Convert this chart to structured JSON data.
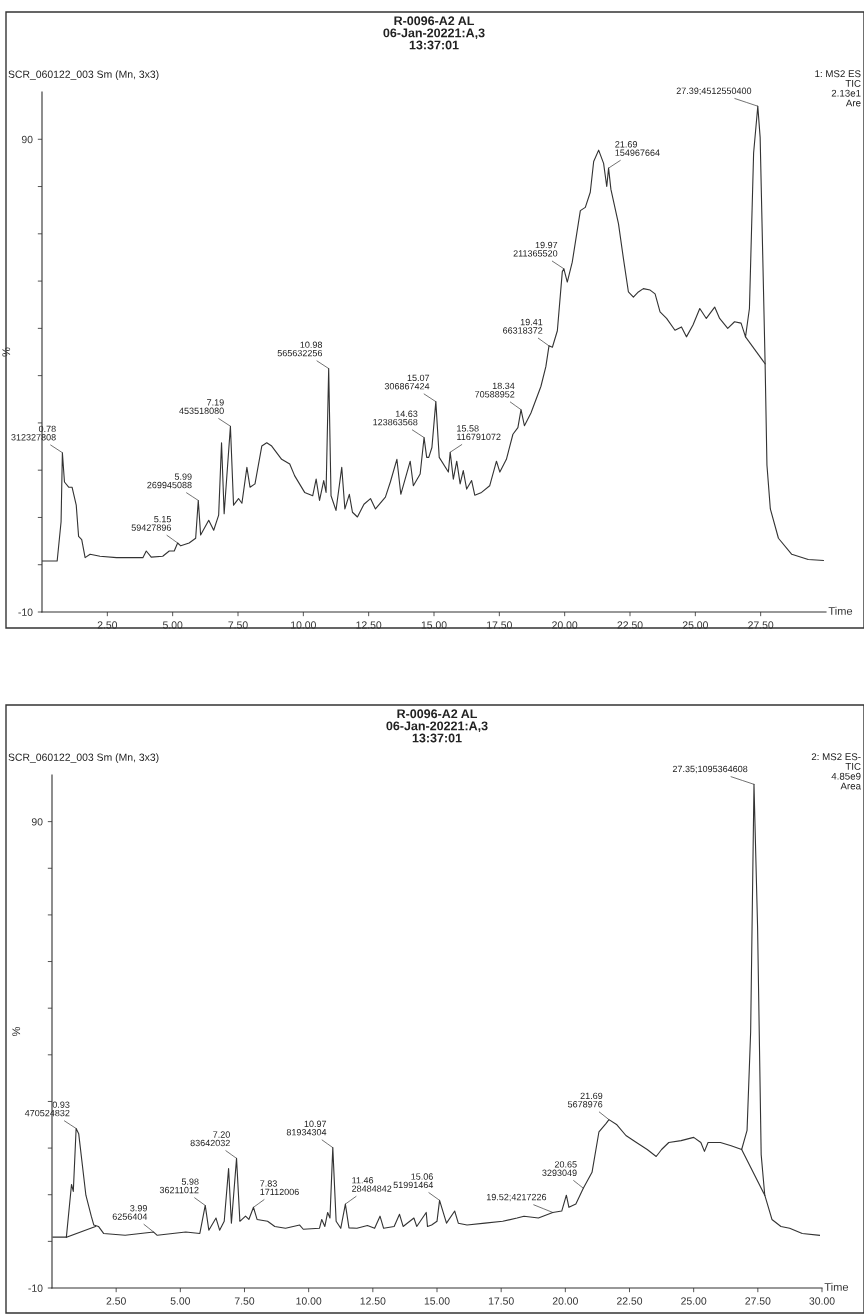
{
  "chart_data": [
    {
      "type": "line",
      "title": "R-0096-A2 AL\n06-Jan-20221:A,3\n13:37:01",
      "subtitle": "SCR_060122_003 Sm (Mn, 3x3)",
      "xlabel": "Time",
      "ylabel": "%",
      "xlim": [
        0,
        30
      ],
      "ylim": [
        -10,
        100
      ],
      "xticks": [
        {
          "value": 2.5,
          "label": "2.50"
        },
        {
          "value": 5,
          "label": "5.00"
        },
        {
          "value": 7.5,
          "label": "7.50"
        },
        {
          "value": 10,
          "label": "10.00"
        },
        {
          "value": 12.5,
          "label": "12.50"
        },
        {
          "value": 15,
          "label": "15.00"
        },
        {
          "value": 17.5,
          "label": "17.50"
        },
        {
          "value": 20,
          "label": "20.00"
        },
        {
          "value": 22.5,
          "label": "22.50"
        },
        {
          "value": 25,
          "label": "25.00"
        },
        {
          "value": 27.5,
          "label": "27.50"
        }
      ],
      "yticks": [
        -10,
        {
          "value": 0,
          "label": null
        },
        {
          "value": 10,
          "label": null
        },
        {
          "value": 20,
          "label": null
        },
        {
          "value": 30,
          "label": null
        },
        {
          "value": 40,
          "label": null
        },
        {
          "value": 50,
          "label": null
        },
        {
          "value": 60,
          "label": null
        },
        {
          "value": 70,
          "label": null
        },
        {
          "value": 80,
          "label": null
        },
        90
      ],
      "series": [
        {
          "color": "#333333",
          "x": [
            0.01,
            0.58,
            0.73,
            0.78,
            0.86,
            1.02,
            1.15,
            1.31,
            1.4,
            1.52,
            1.65,
            1.84,
            2.22,
            2.85,
            3.86,
            3.99,
            4.18,
            4.62,
            4.87,
            5.06,
            5.19,
            5.31,
            5.63,
            5.88,
            5.98,
            6.07,
            6.38,
            6.57,
            6.76,
            6.87,
            6.97,
            7.21,
            7.33,
            7.52,
            7.65,
            7.84,
            7.96,
            8.15,
            8.41,
            8.6,
            8.79,
            9.17,
            9.48,
            9.67,
            10.05,
            10.36,
            10.49,
            10.62,
            10.78,
            10.87,
            10.97,
            11.06,
            11.25,
            11.47,
            11.59,
            11.76,
            11.88,
            12.07,
            12.32,
            12.57,
            12.76,
            13.14,
            13.33,
            13.58,
            13.73,
            14.09,
            14.21,
            14.47,
            14.62,
            14.72,
            14.8,
            14.92,
            15.07,
            15.2,
            15.55,
            15.62,
            15.74,
            15.87,
            16.0,
            16.12,
            16.25,
            16.44,
            16.56,
            16.82,
            17.13,
            17.39,
            17.52,
            17.77,
            18.02,
            18.21,
            18.33,
            18.46,
            18.71,
            19.09,
            19.28,
            19.4,
            19.53,
            19.72,
            19.91,
            19.97,
            20.1,
            20.29,
            20.6,
            20.79,
            20.98,
            21.11,
            21.3,
            21.49,
            21.61,
            21.68,
            21.77,
            22.06,
            22.25,
            22.44,
            22.63,
            22.82,
            23.01,
            23.27,
            23.46,
            23.65,
            23.9,
            24.22,
            24.47,
            24.66,
            24.91,
            25.17,
            25.42,
            25.74,
            25.93,
            26.24,
            26.5,
            26.75,
            26.92,
            27.07,
            27.23,
            27.39,
            27.48,
            27.67,
            27.74,
            27.87,
            28.18,
            28.69,
            29.32,
            29.9
          ],
          "values": [
            0.8,
            0.8,
            9.1,
            23.7,
            17.5,
            16.4,
            16.4,
            12.6,
            6.0,
            5.3,
            1.5,
            2.2,
            1.8,
            1.5,
            1.5,
            2.9,
            1.6,
            1.8,
            2.9,
            2.9,
            4.6,
            4.0,
            4.6,
            5.6,
            13.6,
            6.3,
            9.4,
            7.3,
            10.5,
            25.8,
            10.8,
            29.3,
            12.6,
            14.0,
            13.0,
            20.6,
            16.4,
            17.1,
            25.1,
            25.8,
            25.1,
            22.3,
            21.3,
            18.8,
            15.3,
            14.6,
            18.1,
            13.6,
            17.8,
            15.3,
            41.5,
            14.6,
            11.5,
            20.6,
            11.8,
            14.9,
            11.1,
            10.1,
            12.8,
            14.0,
            11.8,
            14.3,
            17.5,
            22.3,
            14.9,
            21.9,
            16.7,
            19.2,
            26.9,
            22.7,
            22.7,
            24.8,
            34.5,
            22.7,
            19.6,
            23.8,
            18.1,
            21.9,
            17.1,
            19.9,
            16.0,
            17.8,
            14.7,
            15.3,
            16.7,
            21.9,
            19.6,
            22.3,
            27.6,
            29.0,
            32.8,
            29.4,
            32.1,
            37.7,
            41.9,
            46.3,
            46.0,
            49.5,
            62.0,
            62.6,
            59.8,
            64.0,
            74.9,
            75.6,
            78.8,
            85.3,
            87.7,
            84.9,
            80.0,
            83.9,
            79.4,
            72.1,
            64.7,
            57.7,
            56.6,
            57.7,
            58.4,
            58.1,
            57.3,
            53.5,
            52.1,
            49.6,
            50.3,
            48.2,
            50.7,
            54.2,
            52.1,
            54.5,
            52.1,
            50.0,
            51.4,
            51.1,
            48.2,
            54.2,
            87.1,
            97.0,
            90.4,
            42.5,
            21.1,
            11.8,
            5.6,
            2.2,
            1.1,
            0.9
          ]
        },
        {
          "color": "#333333",
          "x": [
            26.92,
            27.67
          ],
          "values": [
            48.2,
            42.5
          ]
        }
      ],
      "annotations": [
        "1: MS2 ES\nTIC\n2.13e1\nAre",
        {
          "text": "0.78\n312327808",
          "x": 0.78,
          "y": 23.7
        },
        {
          "text": "5.15\n59427896",
          "x": 5.19,
          "y": 4.6
        },
        {
          "text": "5.99\n269945088",
          "x": 5.98,
          "y": 13.6
        },
        {
          "text": "7.19\n453518080",
          "x": 7.21,
          "y": 29.3
        },
        {
          "text": "10.98\n565632256",
          "x": 10.97,
          "y": 41.5
        },
        {
          "text": "14.63\n123863568",
          "x": 14.62,
          "y": 26.9
        },
        {
          "text": "15.07\n306867424",
          "x": 15.07,
          "y": 34.5
        },
        {
          "text": "15.58\n116791072",
          "x": 15.62,
          "y": 23.8
        },
        {
          "text": "18.34\n70588952",
          "x": 18.33,
          "y": 32.8
        },
        {
          "text": "19.41\n66318372",
          "x": 19.4,
          "y": 46.3
        },
        {
          "text": "19.97\n211365520",
          "x": 19.97,
          "y": 62.6
        },
        {
          "text": "21.69\n154967664",
          "x": 21.68,
          "y": 83.9
        },
        {
          "text": "27.39;4512550400",
          "x": 27.39,
          "y": 97.0
        }
      ]
    },
    {
      "type": "line",
      "title": "R-0096-A2 AL\n06-Jan-20221:A,3\n13:37:01",
      "subtitle": "SCR_060122_003 Sm (Mn, 3x3)",
      "xlabel": "Time",
      "ylabel": "%",
      "xlim": [
        0,
        30
      ],
      "ylim": [
        -10,
        100
      ],
      "xticks": [
        {
          "value": 2.5,
          "label": "2.50"
        },
        {
          "value": 5,
          "label": "5.00"
        },
        {
          "value": 7.5,
          "label": "7.50"
        },
        {
          "value": 10,
          "label": "10.00"
        },
        {
          "value": 12.5,
          "label": "12.50"
        },
        {
          "value": 15,
          "label": "15.00"
        },
        {
          "value": 17.5,
          "label": "17.50"
        },
        {
          "value": 20,
          "label": "20.00"
        },
        {
          "value": 22.5,
          "label": "22.50"
        },
        {
          "value": 25,
          "label": "25.00"
        },
        {
          "value": 27.5,
          "label": "27.50"
        },
        {
          "value": 30,
          "label": "30.00"
        }
      ],
      "yticks": [
        -10,
        {
          "value": 0,
          "label": null
        },
        {
          "value": 10,
          "label": null
        },
        {
          "value": 20,
          "label": null
        },
        {
          "value": 30,
          "label": null
        },
        {
          "value": 40,
          "label": null
        },
        {
          "value": 50,
          "label": null
        },
        {
          "value": 60,
          "label": null
        },
        {
          "value": 70,
          "label": null
        },
        {
          "value": 80,
          "label": null
        },
        90
      ],
      "series": [
        {
          "color": "#333333",
          "x": [
            0.04,
            0.56,
            0.76,
            0.83,
            0.94,
            1.04,
            1.32,
            1.53,
            1.63,
            1.81,
            2.01,
            2.85,
            3.96,
            4.1,
            5.21,
            5.76,
            5.97,
            6.11,
            6.39,
            6.53,
            6.71,
            6.88,
            6.99,
            7.19,
            7.32,
            7.54,
            7.67,
            7.85,
            7.99,
            8.4,
            8.68,
            9.1,
            9.65,
            9.79,
            10.42,
            10.51,
            10.63,
            10.74,
            10.83,
            10.94,
            11.07,
            11.25,
            11.43,
            11.57,
            11.88,
            12.29,
            12.57,
            12.78,
            12.92,
            13.33,
            13.54,
            13.68,
            14.1,
            14.21,
            14.58,
            14.63,
            14.79,
            15.0,
            15.1,
            15.37,
            15.69,
            15.83,
            16.17,
            16.87,
            17.56,
            18.12,
            18.39,
            18.95,
            19.51,
            19.86,
            20.04,
            20.14,
            20.41,
            20.7,
            21.04,
            21.31,
            21.59,
            21.7,
            22.01,
            22.36,
            22.77,
            23.19,
            23.54,
            23.75,
            24.03,
            24.51,
            25.0,
            25.28,
            25.42,
            25.56,
            26.04,
            26.46,
            26.87,
            27.08,
            27.22,
            27.35,
            27.49,
            27.63,
            27.77,
            28.05,
            28.4,
            28.74,
            29.23,
            29.9
          ],
          "values": [
            0.9,
            0.9,
            12.2,
            10.7,
            24.2,
            23.1,
            9.9,
            5.4,
            3.5,
            3.2,
            1.7,
            1.3,
            2.0,
            1.3,
            2.0,
            1.7,
            7.7,
            2.4,
            5.0,
            2.4,
            4.3,
            15.6,
            3.9,
            17.8,
            4.3,
            5.4,
            4.7,
            7.3,
            4.7,
            4.3,
            3.2,
            2.8,
            3.5,
            2.6,
            2.8,
            4.7,
            3.2,
            6.2,
            5.0,
            20.1,
            4.3,
            2.8,
            8.0,
            2.9,
            2.8,
            3.4,
            2.8,
            5.4,
            2.8,
            3.2,
            5.8,
            3.2,
            5.0,
            3.2,
            6.2,
            3.2,
            3.5,
            4.3,
            8.8,
            3.9,
            6.5,
            3.9,
            3.5,
            3.9,
            4.3,
            5.0,
            5.4,
            5.0,
            6.2,
            6.5,
            9.9,
            7.3,
            8.0,
            11.4,
            14.8,
            23.5,
            25.3,
            26.1,
            25.0,
            22.7,
            21.2,
            19.7,
            18.2,
            19.7,
            21.2,
            21.6,
            22.3,
            21.2,
            19.3,
            21.2,
            21.2,
            20.5,
            19.7,
            23.8,
            44.9,
            98.0,
            67.4,
            18.6,
            9.9,
            4.7,
            3.2,
            2.8,
            1.7,
            1.3
          ]
        },
        {
          "color": "#333333",
          "x": [
            0.56,
            1.7
          ],
          "values": [
            0.9,
            3.2
          ]
        },
        {
          "color": "#333333",
          "x": [
            26.87,
            27.77
          ],
          "values": [
            19.7,
            9.9
          ]
        }
      ],
      "annotations": [
        "2: MS2 ES-\nTIC\n4.85e9\nArea",
        {
          "text": "0.93\n470524832",
          "x": 0.94,
          "y": 24.2
        },
        {
          "text": "3.99\n6256404",
          "x": 3.96,
          "y": 2.0
        },
        {
          "text": "5.98\n36211012",
          "x": 5.97,
          "y": 7.7
        },
        {
          "text": "7.20\n83642032",
          "x": 7.19,
          "y": 17.8
        },
        {
          "text": "7.83\n17112006",
          "x": 7.85,
          "y": 7.3
        },
        {
          "text": "10.97\n81934304",
          "x": 10.94,
          "y": 20.1
        },
        {
          "text": "11.46\n28484842",
          "x": 11.43,
          "y": 8.0
        },
        {
          "text": "15.06\n51991464",
          "x": 15.1,
          "y": 8.8
        },
        {
          "text": "19.52;4217226",
          "x": 19.51,
          "y": 6.2
        },
        {
          "text": "20.65\n3293049",
          "x": 20.7,
          "y": 11.4
        },
        {
          "text": "21.69\n5678976",
          "x": 21.7,
          "y": 26.1
        },
        {
          "text": "27.35;1095364608",
          "x": 27.35,
          "y": 98.0
        }
      ]
    }
  ]
}
